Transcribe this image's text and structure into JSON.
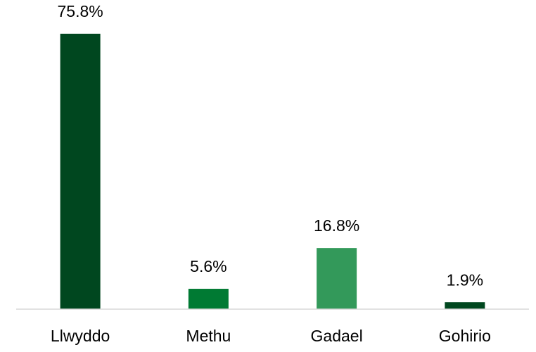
{
  "chart_data": {
    "type": "bar",
    "categories": [
      "Llwyddo",
      "Methu",
      "Gadael",
      "Gohirio"
    ],
    "values": [
      75.8,
      5.6,
      16.8,
      1.9
    ],
    "value_labels": [
      "75.8%",
      "5.6%",
      "16.8%",
      "1.9%"
    ],
    "colors": [
      "#00471f",
      "#007a33",
      "#33995a",
      "#00471f"
    ]
  }
}
